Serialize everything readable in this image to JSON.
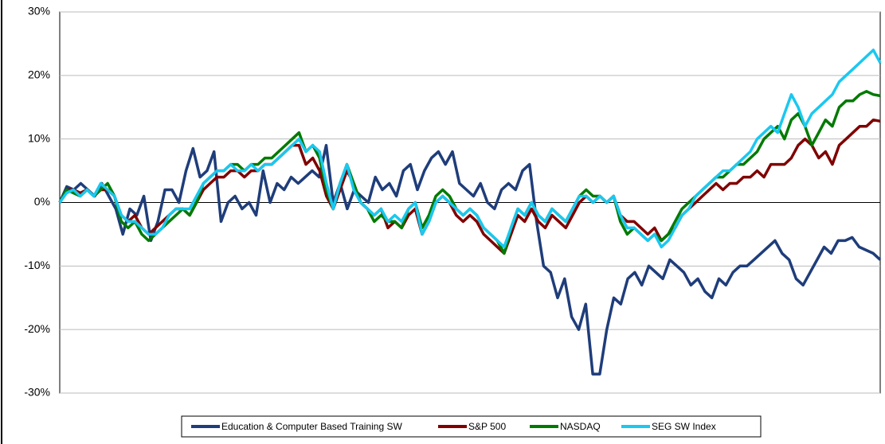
{
  "chart_data": {
    "type": "line",
    "ylim": [
      -30,
      30
    ],
    "yticks": [
      {
        "value": -30,
        "label": "-30%"
      },
      {
        "value": -20,
        "label": "-20%"
      },
      {
        "value": -10,
        "label": "-10%"
      },
      {
        "value": 0,
        "label": "0%"
      },
      {
        "value": 10,
        "label": "10%"
      },
      {
        "value": 20,
        "label": "20%"
      },
      {
        "value": 30,
        "label": "30%"
      }
    ],
    "grid": true,
    "legend": "bottom",
    "series": [
      {
        "name": "Education & Computer Based Training SW",
        "color": "#1f3d7a",
        "values": [
          0,
          2.5,
          2,
          3,
          2,
          1,
          3,
          1,
          -1,
          -5,
          -1,
          -2,
          1,
          -6,
          -3,
          2,
          2,
          0,
          5,
          8.5,
          4,
          5,
          8,
          -3,
          0,
          1,
          -1,
          0,
          -2,
          5,
          0,
          3,
          2,
          4,
          3,
          4,
          5,
          4,
          9,
          0,
          3,
          -1,
          2,
          1,
          0,
          4,
          2,
          3,
          1,
          5,
          6,
          2,
          5,
          7,
          8,
          6,
          8,
          3,
          2,
          1,
          3,
          0,
          -1,
          2,
          3,
          2,
          5,
          6,
          -3,
          -10,
          -11,
          -15,
          -12,
          -18,
          -20,
          -16,
          -27,
          -27,
          -20,
          -15,
          -16,
          -12,
          -11,
          -13,
          -10,
          -11,
          -12,
          -9,
          -10,
          -11,
          -13,
          -12,
          -14,
          -15,
          -12,
          -13,
          -11,
          -10,
          -10,
          -9,
          -8,
          -7,
          -6,
          -8,
          -9,
          -12,
          -13,
          -11,
          -9,
          -7,
          -8,
          -6,
          -6,
          -5.5,
          -7,
          -7.5,
          -8,
          -9
        ]
      },
      {
        "name": "S&P 500",
        "color": "#800000",
        "values": [
          0,
          2,
          2,
          1.5,
          2,
          1,
          2,
          2,
          1,
          -2,
          -3,
          -2,
          -4,
          -5,
          -4,
          -3,
          -2,
          -1,
          -1,
          -2,
          0,
          2,
          3,
          4,
          4,
          5,
          5,
          4,
          5,
          5,
          6,
          6,
          7,
          8,
          9,
          9,
          6,
          7,
          5,
          1,
          -1,
          2,
          5,
          3,
          0,
          -1,
          -2,
          -1,
          -4,
          -3,
          -4,
          -2,
          -1,
          -5,
          -3,
          0,
          1,
          0,
          -2,
          -3,
          -2,
          -3,
          -5,
          -6,
          -7,
          -8,
          -5,
          -2,
          -3,
          -1,
          -3,
          -4,
          -2,
          -3,
          -4,
          -2,
          0,
          1,
          0,
          1,
          0,
          1,
          -2,
          -3,
          -3,
          -4,
          -5,
          -4,
          -6,
          -5,
          -4,
          -2,
          -1,
          0,
          1,
          2,
          3,
          2,
          3,
          3,
          4,
          4,
          5,
          4,
          6,
          6,
          6,
          7,
          9,
          10,
          9,
          7,
          8,
          6,
          9,
          10,
          11,
          12,
          12,
          13,
          12.8
        ]
      },
      {
        "name": "NASDAQ",
        "color": "#007a00",
        "values": [
          0,
          2,
          1.5,
          1,
          2,
          1,
          2,
          3,
          1,
          -3,
          -4,
          -3,
          -5,
          -6,
          -5,
          -4,
          -3,
          -2,
          -1,
          -2,
          0,
          3,
          4,
          5,
          5,
          6,
          6,
          5,
          6,
          6,
          7,
          7,
          8,
          9,
          10,
          11,
          8,
          9,
          7,
          2,
          -1,
          3,
          6,
          3,
          0,
          -1,
          -3,
          -2,
          -3,
          -3,
          -4,
          -1,
          0,
          -4,
          -2,
          1,
          2,
          1,
          -1,
          -2,
          -1,
          -2,
          -4,
          -5,
          -6,
          -8,
          -4,
          -1,
          -2,
          0,
          -2,
          -3,
          -1,
          -2,
          -3,
          -1,
          1,
          2,
          1,
          1,
          0,
          1,
          -3,
          -5,
          -4,
          -5,
          -6,
          -5,
          -6,
          -5,
          -3,
          -1,
          0,
          1,
          2,
          3,
          4,
          4,
          5,
          6,
          6,
          7,
          8,
          10,
          11,
          12,
          10,
          13,
          14,
          12,
          9,
          11,
          13,
          12,
          15,
          16,
          16,
          17,
          17.5,
          17,
          16.8
        ]
      },
      {
        "name": "SEG SW Index",
        "color": "#1ac8f0",
        "values": [
          0,
          1.5,
          2,
          1,
          2,
          1,
          3,
          2,
          1,
          -2,
          -3,
          -3,
          -4,
          -5,
          -5,
          -4,
          -2,
          -1,
          -1,
          -1,
          1,
          3,
          4,
          5,
          5,
          6,
          5,
          5,
          6,
          5,
          6,
          6,
          7,
          8,
          9,
          10,
          8,
          9,
          8,
          3,
          -1,
          3,
          6,
          2,
          0,
          -1,
          -2,
          -1,
          -3,
          -2,
          -3,
          -1,
          0,
          -5,
          -3,
          0,
          1,
          0,
          -1,
          -2,
          -1,
          -2,
          -4,
          -5,
          -6,
          -7,
          -4,
          -1,
          -2,
          0,
          -2,
          -3,
          -1,
          -2,
          -3,
          -1,
          1,
          1,
          0,
          1,
          0,
          1,
          -2,
          -4,
          -4,
          -5,
          -6,
          -5,
          -7,
          -6,
          -4,
          -2,
          -1,
          1,
          2,
          3,
          4,
          5,
          5,
          6,
          7,
          8,
          10,
          11,
          12,
          11,
          14,
          17,
          15,
          12,
          14,
          15,
          16,
          17,
          19,
          20,
          21,
          22,
          23,
          24,
          22
        ]
      }
    ]
  }
}
